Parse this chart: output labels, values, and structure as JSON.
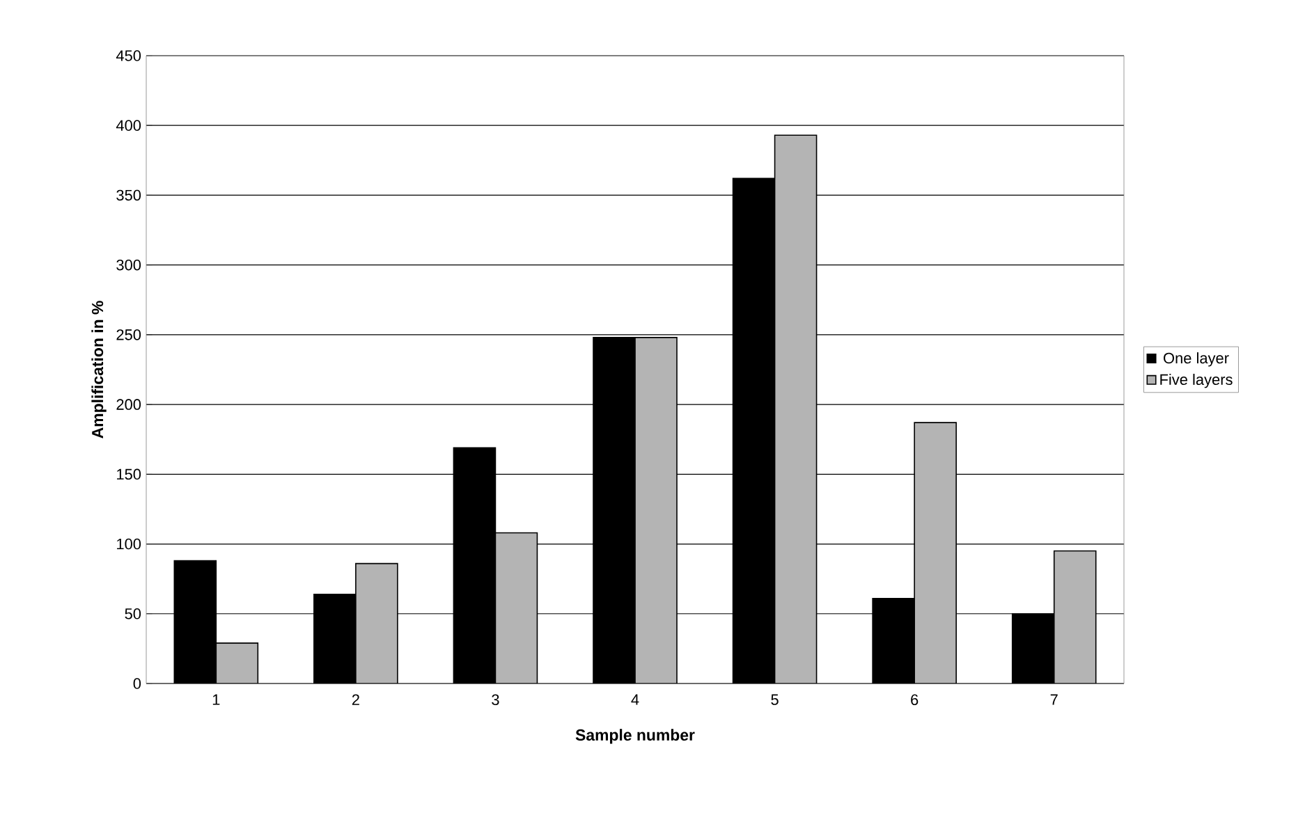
{
  "chart_data": {
    "type": "bar",
    "xlabel": "Sample number",
    "ylabel": "Amplification in %",
    "categories": [
      "1",
      "2",
      "3",
      "4",
      "5",
      "6",
      "7"
    ],
    "series": [
      {
        "name": "One layer",
        "color": "#000000",
        "values": [
          88,
          64,
          169,
          248,
          362,
          61,
          50
        ]
      },
      {
        "name": "Five layers",
        "color": "#b4b4b4",
        "values": [
          29,
          86,
          108,
          248,
          393,
          187,
          95
        ]
      }
    ],
    "ylim": [
      0,
      450
    ],
    "yticks": [
      0,
      50,
      100,
      150,
      200,
      250,
      300,
      350,
      400,
      450
    ],
    "grid": "y",
    "legend": "right"
  }
}
